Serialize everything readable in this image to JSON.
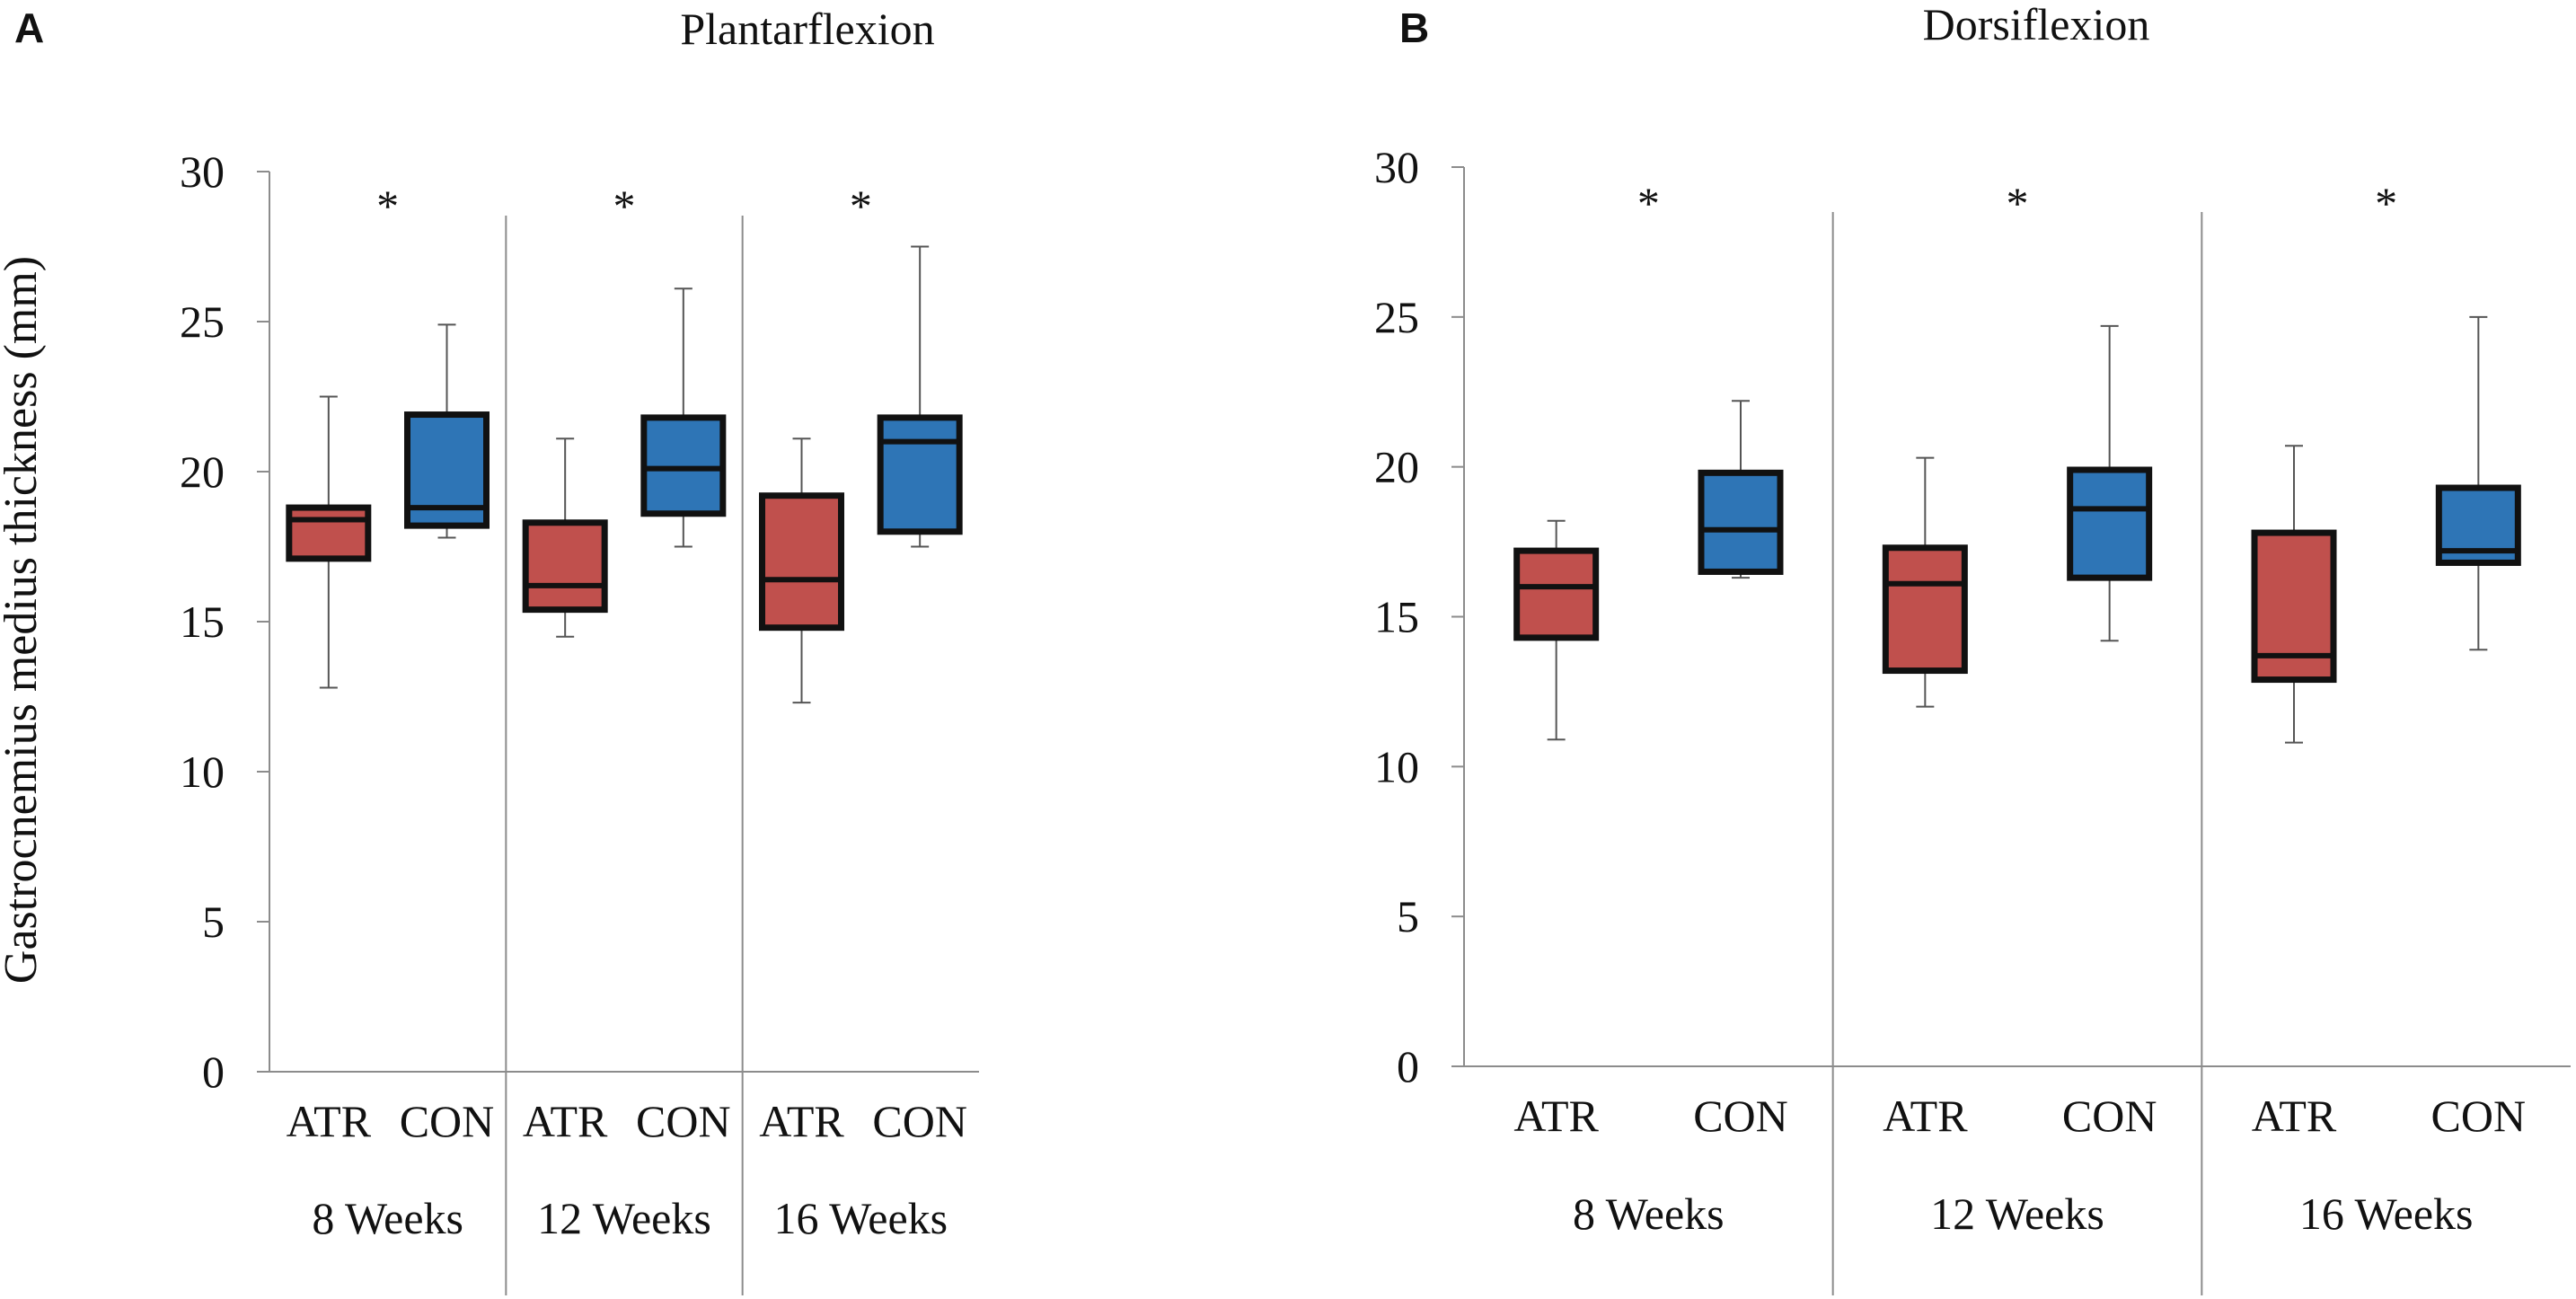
{
  "figure": {
    "y_axis_label": "Gastrocnemius medius thickness (mm)"
  },
  "colors": {
    "ATR": "#c0504d",
    "CON": "#2e75b6",
    "outline": "#111111",
    "axis": "#8c8c8c"
  },
  "chart_data": [
    {
      "type": "box",
      "panel_label": "A",
      "title": "Plantarflexion",
      "ylabel": "Gastrocnemius medius thickness (mm)",
      "ylim": [
        0,
        30
      ],
      "yticks": [
        0,
        5,
        10,
        15,
        20,
        25,
        30
      ],
      "significance_marker": "*",
      "groups": [
        {
          "label": "8 Weeks",
          "significance": "*",
          "boxes": [
            {
              "name": "ATR",
              "min": 12.8,
              "q1": 17.1,
              "median": 18.4,
              "q3": 18.8,
              "max": 22.5
            },
            {
              "name": "CON",
              "min": 17.8,
              "q1": 18.2,
              "median": 18.8,
              "q3": 21.9,
              "max": 24.9
            }
          ]
        },
        {
          "label": "12 Weeks",
          "significance": "*",
          "boxes": [
            {
              "name": "ATR",
              "min": 14.5,
              "q1": 15.4,
              "median": 16.2,
              "q3": 18.3,
              "max": 21.1
            },
            {
              "name": "CON",
              "min": 17.5,
              "q1": 18.6,
              "median": 20.1,
              "q3": 21.8,
              "max": 26.1
            }
          ]
        },
        {
          "label": "16 Weeks",
          "significance": "*",
          "boxes": [
            {
              "name": "ATR",
              "min": 12.3,
              "q1": 14.8,
              "median": 16.4,
              "q3": 19.2,
              "max": 21.1
            },
            {
              "name": "CON",
              "min": 17.5,
              "q1": 18.0,
              "median": 21.0,
              "q3": 21.8,
              "max": 27.5
            }
          ]
        }
      ]
    },
    {
      "type": "box",
      "panel_label": "B",
      "title": "Dorsiflexion",
      "ylabel": "",
      "ylim": [
        0,
        30
      ],
      "yticks": [
        0,
        5,
        10,
        15,
        20,
        25,
        30
      ],
      "significance_marker": "*",
      "groups": [
        {
          "label": "8 Weeks",
          "significance": "*",
          "boxes": [
            {
              "name": "ATR",
              "min": 10.9,
              "q1": 14.3,
              "median": 16.0,
              "q3": 17.2,
              "max": 18.2
            },
            {
              "name": "CON",
              "min": 16.3,
              "q1": 16.5,
              "median": 17.9,
              "q3": 19.8,
              "max": 22.2
            }
          ]
        },
        {
          "label": "12 Weeks",
          "significance": "*",
          "boxes": [
            {
              "name": "ATR",
              "min": 12.0,
              "q1": 13.2,
              "median": 16.1,
              "q3": 17.3,
              "max": 20.3
            },
            {
              "name": "CON",
              "min": 14.2,
              "q1": 16.3,
              "median": 18.6,
              "q3": 19.9,
              "max": 24.7
            }
          ]
        },
        {
          "label": "16 Weeks",
          "significance": "*",
          "boxes": [
            {
              "name": "ATR",
              "min": 10.8,
              "q1": 12.9,
              "median": 13.7,
              "q3": 17.8,
              "max": 20.7
            },
            {
              "name": "CON",
              "min": 13.9,
              "q1": 16.8,
              "median": 17.2,
              "q3": 19.3,
              "max": 25.0
            }
          ]
        }
      ]
    }
  ]
}
